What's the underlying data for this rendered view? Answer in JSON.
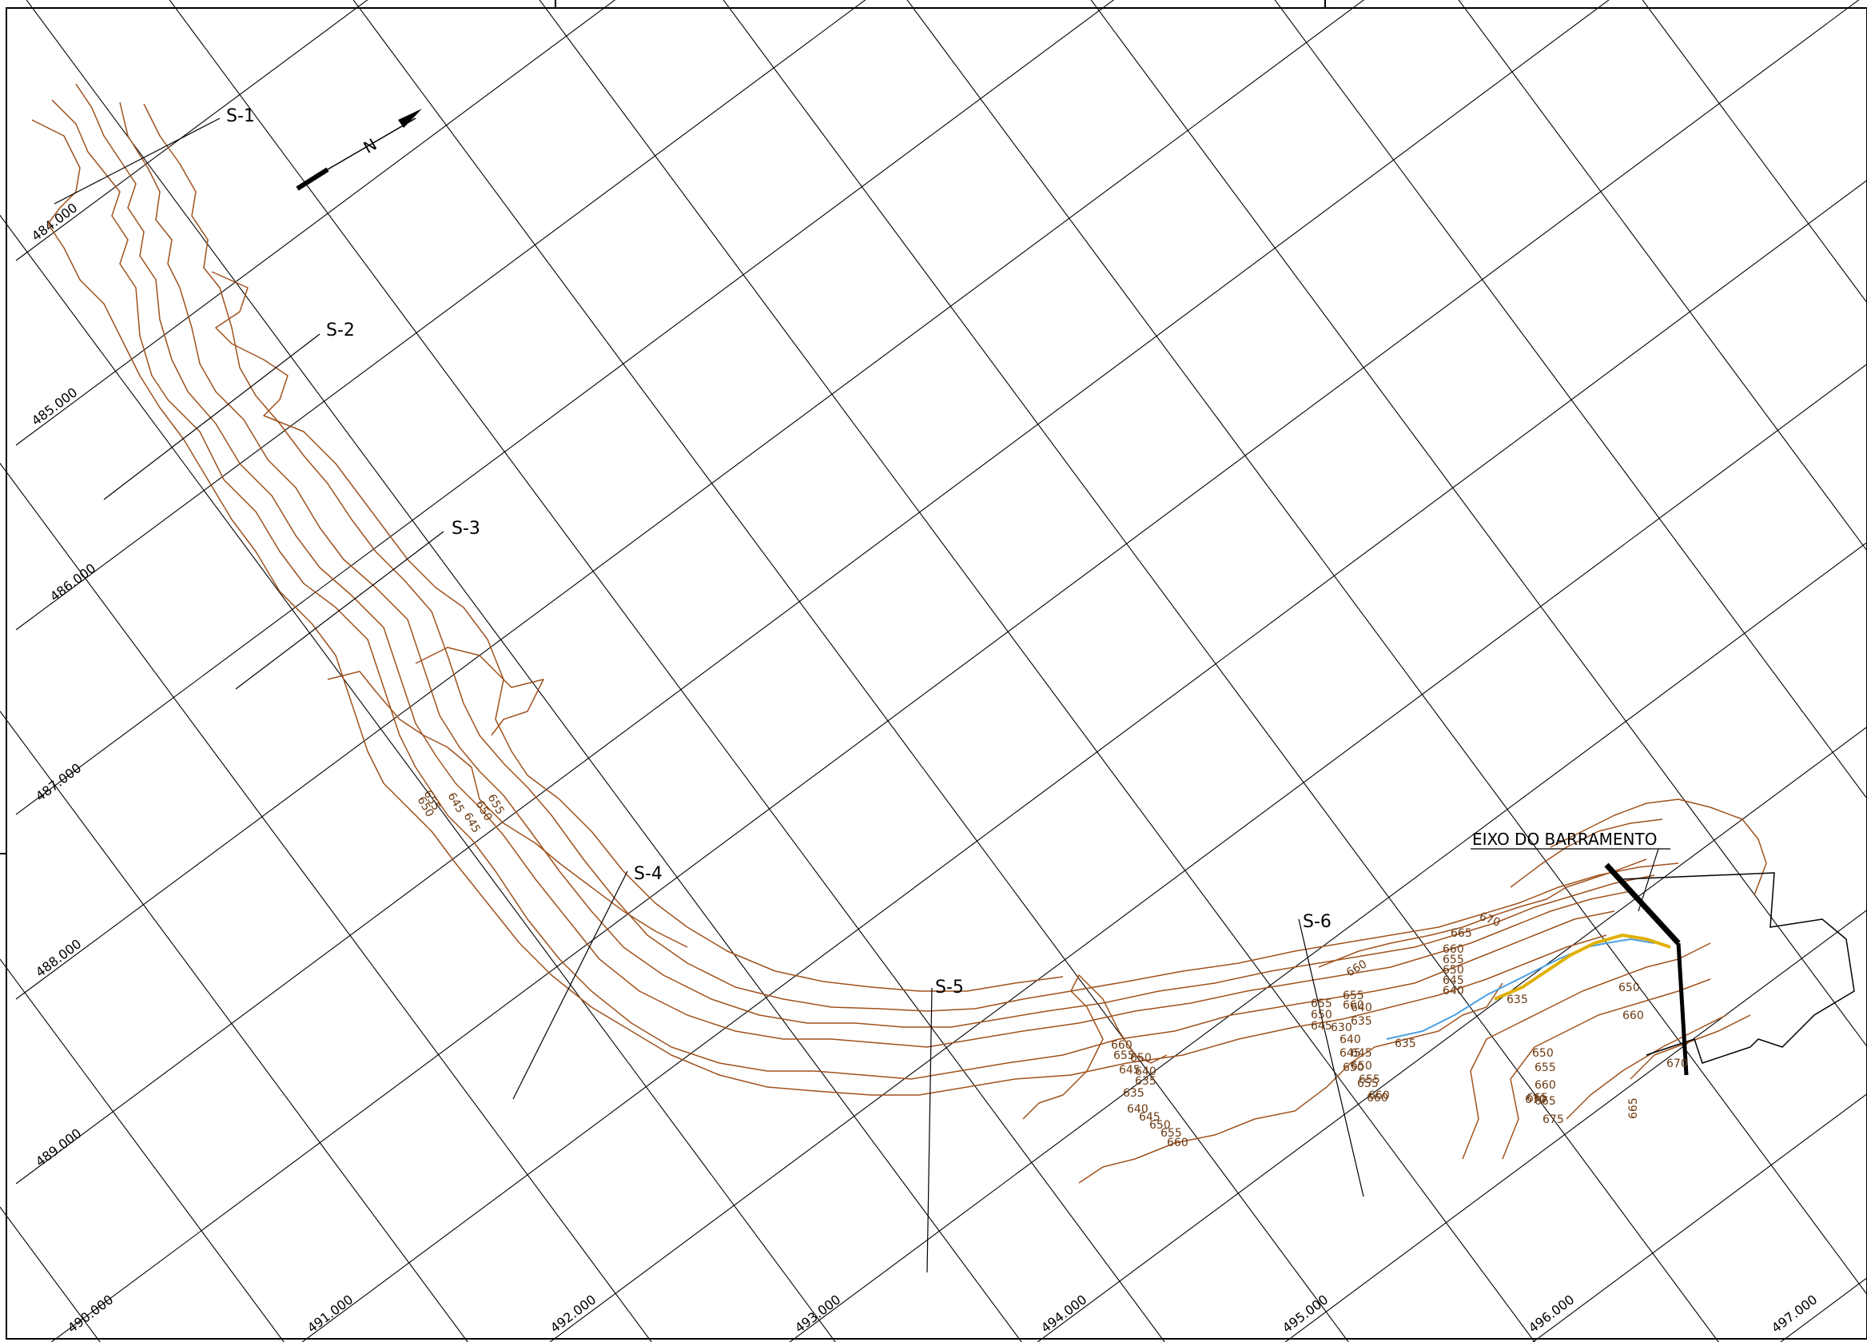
{
  "map": {
    "sections": [
      "S-1",
      "S-2",
      "S-3",
      "S-4",
      "S-5",
      "S-6"
    ],
    "axis_label": "EIXO DO BARRAMENTO",
    "north_arrow_label": "N",
    "coordinates_left": [
      "484.000",
      "485.000",
      "486.000",
      "487.000",
      "488.000",
      "489.000",
      "490.000"
    ],
    "coordinates_bottom": [
      "491.000",
      "492.000",
      "493.000",
      "494.000",
      "495.000",
      "496.000",
      "497.000"
    ],
    "elevation_labels": [
      "670",
      "665",
      "660",
      "655",
      "650",
      "645",
      "640",
      "635",
      "630",
      "675"
    ],
    "colors": {
      "contour": "#a0521d",
      "grid": "#000000",
      "river": "#e0b000",
      "water": "#4aa0e0"
    }
  }
}
